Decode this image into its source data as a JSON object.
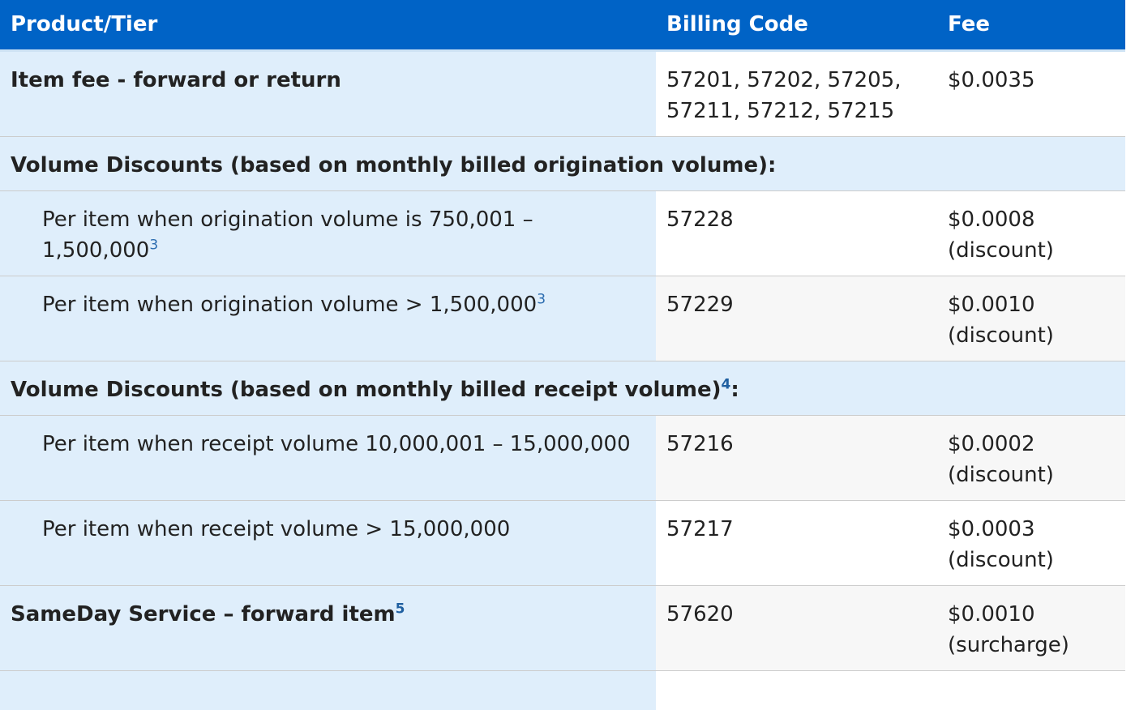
{
  "headers": {
    "product": "Product/Tier",
    "billing_code": "Billing Code",
    "fee": "Fee"
  },
  "rows": [
    {
      "label": "Item fee - forward or return",
      "code": "57201, 57202, 57205, 57211, 57212, 57215",
      "fee": "$0.0035"
    },
    {
      "section": "Volume Discounts (based on monthly billed origination volume):"
    },
    {
      "label": "Per item when origination volume is 750,001 – 1,500,000",
      "footnote": "3",
      "code": "57228",
      "fee": "$0.0008",
      "fee_note": "(discount)"
    },
    {
      "label": "Per item when origination volume > 1,500,000",
      "footnote": "3",
      "code": "57229",
      "fee": "$0.0010",
      "fee_note": "(discount)"
    },
    {
      "section": "Volume Discounts (based on monthly billed receipt volume)",
      "footnote": "4",
      "section_suffix": ":"
    },
    {
      "label": "Per item when receipt volume 10,000,001 – 15,000,000",
      "code": "57216",
      "fee": "$0.0002",
      "fee_note": "(discount)"
    },
    {
      "label": "Per item when receipt volume > 15,000,000",
      "code": "57217",
      "fee": "$0.0003",
      "fee_note": "(discount)"
    },
    {
      "label": "SameDay Service – forward item",
      "footnote": "5",
      "code": "57620",
      "fee": "$0.0010",
      "fee_note": "(surcharge)"
    }
  ]
}
